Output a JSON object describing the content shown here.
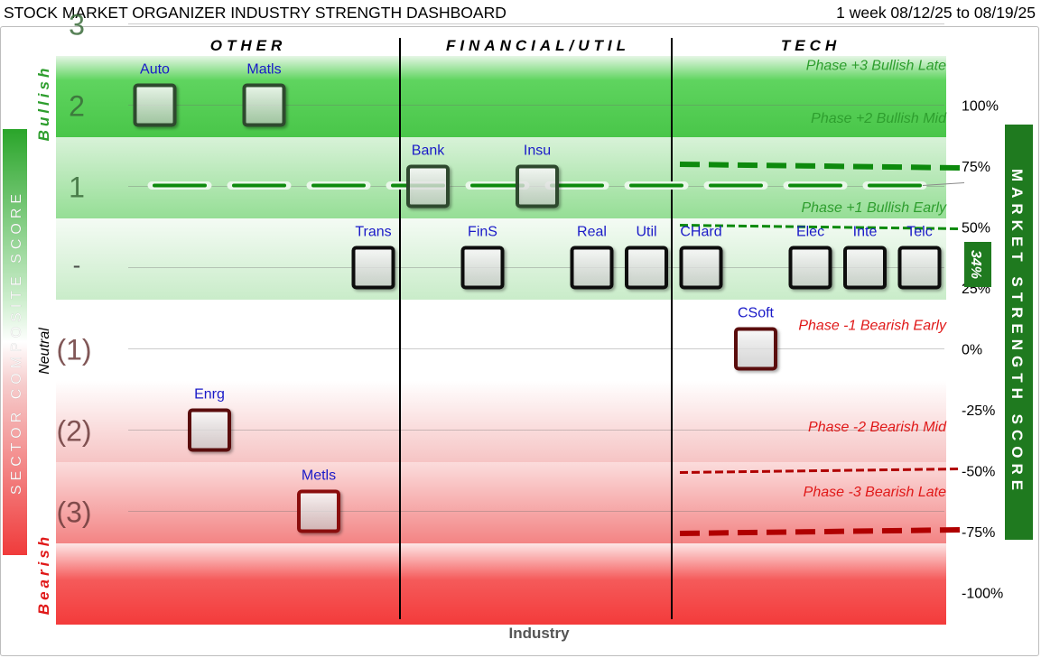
{
  "header": {
    "title": "STOCK MARKET ORGANIZER INDUSTRY STRENGTH DASHBOARD",
    "date_range": "1 week 08/12/25 to 08/19/25"
  },
  "colors": {
    "bull_text": "#2e9e2e",
    "bear_text": "#e01919",
    "industry_label": "#1a1ac8",
    "bull_border": "#2e4a2e",
    "neutral_border": "#111111",
    "bear_border": "#5a1010",
    "bear3_border": "#8a0a0a",
    "market_green": "#1f7a1f",
    "market_line_green": "#0d8a0d",
    "market_line_red": "#b00000"
  },
  "chart_data": {
    "type": "scatter",
    "xlabel": "Industry",
    "left_axis_title": "SECTOR COMPOSITE SCORE",
    "right_axis_title": "MARKET STRENGTH SCORE",
    "left_side_labels": {
      "bullish": "Bullish",
      "neutral": "Neutral",
      "bearish": "Bearish"
    },
    "groups": [
      "OTHER",
      "FINANCIAL/UTIL",
      "TECH"
    ],
    "score_levels": [
      {
        "label": "3",
        "score": 3
      },
      {
        "label": "2",
        "score": 2
      },
      {
        "label": "1",
        "score": 1
      },
      {
        "label": "-",
        "score": 0
      },
      {
        "label": "(1)",
        "score": -1
      },
      {
        "label": "(2)",
        "score": -2
      },
      {
        "label": "(3)",
        "score": -3
      }
    ],
    "right_ticks": [
      "100%",
      "75%",
      "50%",
      "25%",
      "0%",
      "-25%",
      "-50%",
      "-75%",
      "-100%"
    ],
    "right_tick_values": [
      100,
      75,
      50,
      25,
      0,
      -25,
      -50,
      -75,
      -100
    ],
    "phase_labels": [
      {
        "text": "Phase +3 Bullish Late",
        "level": 2.5,
        "tone": "bull"
      },
      {
        "text": "Phase +2 Bullish Mid",
        "level": 1.85,
        "tone": "bull"
      },
      {
        "text": "Phase +1 Bullish Early",
        "level": 0.75,
        "tone": "bull"
      },
      {
        "text": "Phase -1 Bearish Early",
        "level": -0.7,
        "tone": "bear"
      },
      {
        "text": "Phase -2 Bearish Mid",
        "level": -1.95,
        "tone": "bear"
      },
      {
        "text": "Phase -3 Bearish Late",
        "level": -2.75,
        "tone": "bear"
      }
    ],
    "threshold_lines": [
      {
        "value": 75,
        "tone": "bull",
        "weight": "heavy"
      },
      {
        "value": 50,
        "tone": "bull",
        "weight": "light"
      },
      {
        "value": -50,
        "tone": "bear",
        "weight": "light"
      },
      {
        "value": -75,
        "tone": "bear",
        "weight": "heavy"
      }
    ],
    "market_strength": {
      "value": 34,
      "label": "34%"
    },
    "industries": [
      {
        "name": "Auto",
        "slot": 1,
        "score": 2
      },
      {
        "name": "Matls",
        "slot": 3,
        "score": 2
      },
      {
        "name": "Enrg",
        "slot": 2,
        "score": -2
      },
      {
        "name": "Metls",
        "slot": 4,
        "score": -3
      },
      {
        "name": "Trans",
        "slot": 5,
        "score": 0
      },
      {
        "name": "Bank",
        "slot": 6,
        "score": 1
      },
      {
        "name": "FinS",
        "slot": 7,
        "score": 0
      },
      {
        "name": "Insu",
        "slot": 8,
        "score": 1
      },
      {
        "name": "Real",
        "slot": 9,
        "score": 0
      },
      {
        "name": "Util",
        "slot": 10,
        "score": 0
      },
      {
        "name": "CHard",
        "slot": 11,
        "score": 0
      },
      {
        "name": "CSoft",
        "slot": 12,
        "score": -1
      },
      {
        "name": "Elec",
        "slot": 13,
        "score": 0
      },
      {
        "name": "Inte",
        "slot": 14,
        "score": 0
      },
      {
        "name": "Telc",
        "slot": 15,
        "score": 0
      }
    ]
  }
}
